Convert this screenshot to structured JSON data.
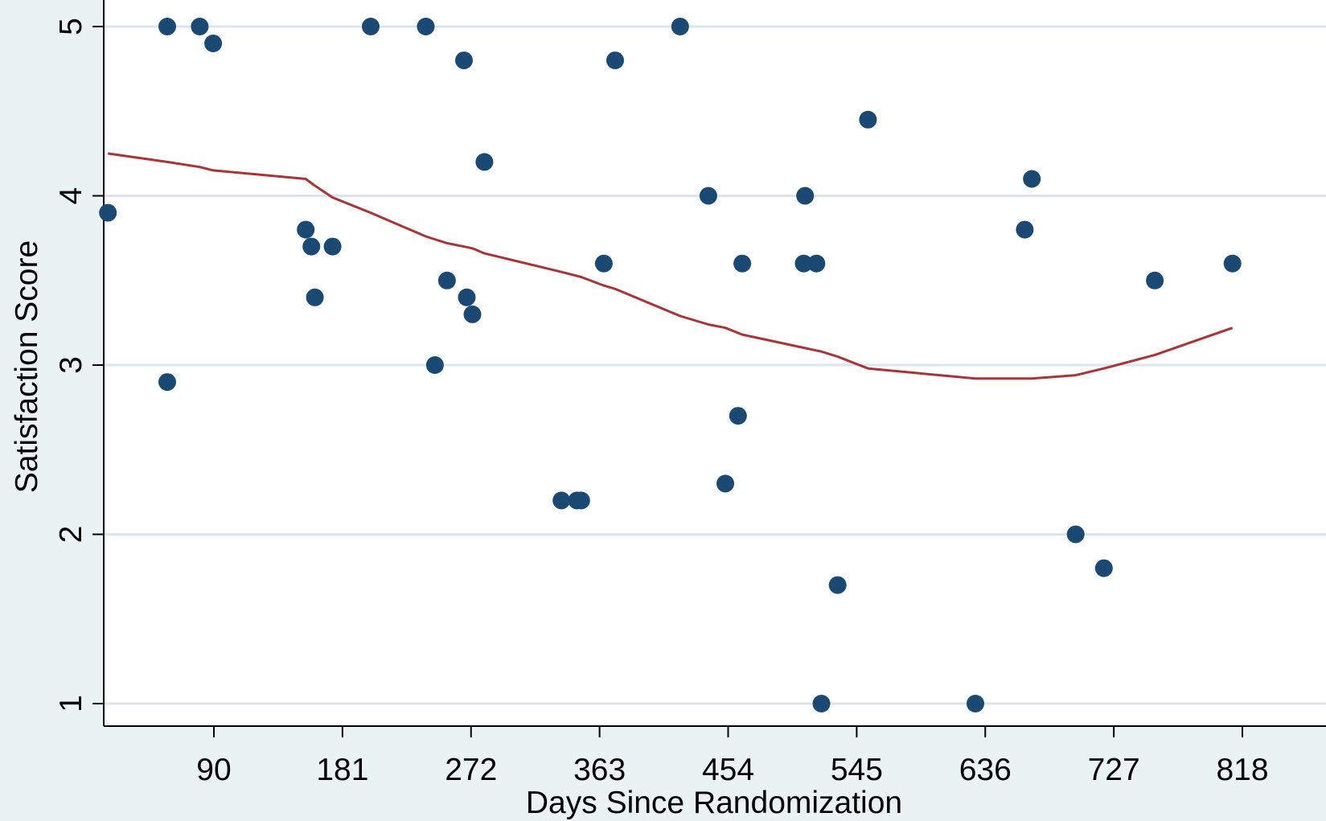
{
  "chart_data": {
    "type": "scatter",
    "title": "",
    "xlabel": "Days Since Randomization",
    "ylabel": "Satisfaction Score",
    "xlim": [
      -20,
      860
    ],
    "ylim": [
      0.85,
      5.1
    ],
    "x_ticks": [
      90,
      181,
      272,
      363,
      454,
      545,
      636,
      727,
      818
    ],
    "y_ticks": [
      1,
      2,
      3,
      4,
      5
    ],
    "grid": "horizontal",
    "legend": "none",
    "colors": {
      "points": "#1a4a74",
      "fit_line": "#a83436",
      "grid": "#dbe6e8",
      "background": "#eaf2f3",
      "plot_area": "#ffffff"
    },
    "series": [
      {
        "type": "scatter",
        "points": [
          [
            15,
            3.9
          ],
          [
            57,
            5
          ],
          [
            57,
            2.9
          ],
          [
            80,
            5
          ],
          [
            89.5,
            4.9
          ],
          [
            155,
            3.8
          ],
          [
            159,
            3.7
          ],
          [
            161.5,
            3.4
          ],
          [
            174,
            3.7
          ],
          [
            201,
            5
          ],
          [
            240,
            5
          ],
          [
            246.5,
            3
          ],
          [
            255,
            3.5
          ],
          [
            267,
            4.8
          ],
          [
            269,
            3.4
          ],
          [
            273,
            3.3
          ],
          [
            281.5,
            4.2
          ],
          [
            336,
            2.2
          ],
          [
            347,
            2.2
          ],
          [
            350,
            2.2
          ],
          [
            366,
            3.6
          ],
          [
            374,
            4.8
          ],
          [
            420,
            5
          ],
          [
            440,
            4
          ],
          [
            452,
            2.3
          ],
          [
            461,
            2.7
          ],
          [
            464,
            3.6
          ],
          [
            508.5,
            4
          ],
          [
            507.5,
            3.6
          ],
          [
            516.5,
            3.6
          ],
          [
            520,
            1
          ],
          [
            531.5,
            1.7
          ],
          [
            553,
            4.45
          ],
          [
            629,
            1
          ],
          [
            664,
            3.8
          ],
          [
            669,
            4.1
          ],
          [
            700,
            2
          ],
          [
            720,
            1.8
          ],
          [
            756,
            3.5
          ],
          [
            811,
            3.6
          ]
        ]
      },
      {
        "type": "line",
        "points": [
          [
            15,
            4.25
          ],
          [
            57,
            4.2
          ],
          [
            80,
            4.17
          ],
          [
            89.5,
            4.15
          ],
          [
            155,
            4.1
          ],
          [
            161.5,
            4.06
          ],
          [
            174,
            3.99
          ],
          [
            201,
            3.9
          ],
          [
            240,
            3.76
          ],
          [
            255,
            3.72
          ],
          [
            273,
            3.69
          ],
          [
            281.5,
            3.66
          ],
          [
            336,
            3.55
          ],
          [
            350,
            3.52
          ],
          [
            366,
            3.47
          ],
          [
            374,
            3.45
          ],
          [
            420,
            3.29
          ],
          [
            440,
            3.24
          ],
          [
            452,
            3.22
          ],
          [
            464,
            3.18
          ],
          [
            508.5,
            3.1
          ],
          [
            520,
            3.08
          ],
          [
            531.5,
            3.05
          ],
          [
            553,
            2.98
          ],
          [
            629,
            2.92
          ],
          [
            664,
            2.92
          ],
          [
            669,
            2.92
          ],
          [
            700,
            2.94
          ],
          [
            720,
            2.98
          ],
          [
            756,
            3.06
          ],
          [
            811,
            3.22
          ]
        ]
      }
    ]
  }
}
